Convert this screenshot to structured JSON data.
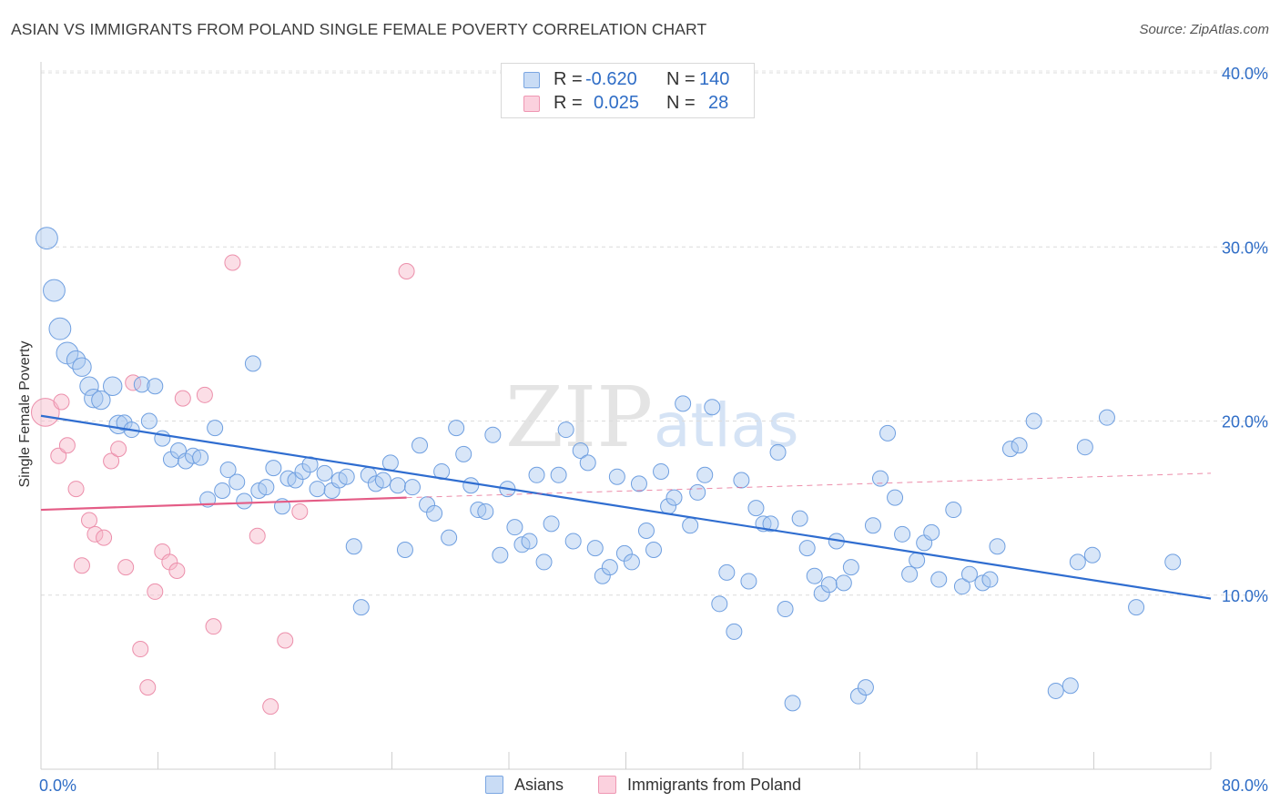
{
  "header": {
    "title": "ASIAN VS IMMIGRANTS FROM POLAND SINGLE FEMALE POVERTY CORRELATION CHART",
    "source": "Source: ZipAtlas.com"
  },
  "watermark": {
    "zip": "ZIP",
    "atlas": "atlas"
  },
  "legend_top": {
    "rows": [
      {
        "r_label": "R =",
        "r_value": "-0.620",
        "n_label": "N =",
        "n_value": "140",
        "color": "#a9c8f0"
      },
      {
        "r_label": "R =",
        "r_value": "0.025",
        "n_label": "N =",
        "n_value": "28",
        "color": "#f7b6c8"
      }
    ]
  },
  "legend_bottom": {
    "asians": "Asians",
    "poland": "Immigrants from Poland"
  },
  "chart_data": {
    "type": "scatter",
    "title": "ASIAN VS IMMIGRANTS FROM POLAND SINGLE FEMALE POVERTY CORRELATION CHART",
    "xlabel": "",
    "ylabel": "Single Female Poverty",
    "xlim": [
      0,
      80
    ],
    "ylim": [
      0,
      40
    ],
    "x_tick_labels": [
      "0.0%",
      "80.0%"
    ],
    "y_ticks": [
      10,
      20,
      30,
      40
    ],
    "y_tick_labels": [
      "10.0%",
      "20.0%",
      "30.0%",
      "40.0%"
    ],
    "grid": "horizontal dashed",
    "colors": {
      "asians_fill": "#a9c8f0",
      "asians_stroke": "#6f9fe0",
      "asians_line": "#2f6dd0",
      "poland_fill": "#f7b6c8",
      "poland_stroke": "#ec8fab",
      "poland_line": "#e45c86",
      "tick_label": "#2f6dc6"
    },
    "series": [
      {
        "name": "Asians",
        "r": -0.62,
        "n": 140,
        "trend": {
          "x": [
            0,
            80
          ],
          "y": [
            20.3,
            9.8
          ]
        },
        "points": [
          [
            0.4,
            30.5,
            1.4
          ],
          [
            0.9,
            27.5,
            1.4
          ],
          [
            1.3,
            25.3,
            1.4
          ],
          [
            1.8,
            23.9,
            1.4
          ],
          [
            2.4,
            23.5,
            1.2
          ],
          [
            2.8,
            23.1,
            1.2
          ],
          [
            3.3,
            22.0,
            1.2
          ],
          [
            3.6,
            21.3,
            1.2
          ],
          [
            4.1,
            21.2,
            1.2
          ],
          [
            4.9,
            22.0,
            1.2
          ],
          [
            5.3,
            19.8,
            1.2
          ],
          [
            5.7,
            19.9,
            1.0
          ],
          [
            6.2,
            19.5,
            1.0
          ],
          [
            6.9,
            22.1,
            1.0
          ],
          [
            7.4,
            20.0,
            1.0
          ],
          [
            7.8,
            22.0,
            1.0
          ],
          [
            8.3,
            19.0,
            1.0
          ],
          [
            8.9,
            17.8,
            1.0
          ],
          [
            9.4,
            18.3,
            1.0
          ],
          [
            9.9,
            17.7,
            1.0
          ],
          [
            10.4,
            18.0,
            1.0
          ],
          [
            10.9,
            17.9,
            1.0
          ],
          [
            11.4,
            15.5,
            1.0
          ],
          [
            11.9,
            19.6,
            1.0
          ],
          [
            12.4,
            16.0,
            1.0
          ],
          [
            12.8,
            17.2,
            1.0
          ],
          [
            13.4,
            16.5,
            1.0
          ],
          [
            13.9,
            15.4,
            1.0
          ],
          [
            14.5,
            23.3,
            1.0
          ],
          [
            14.9,
            16.0,
            1.0
          ],
          [
            15.4,
            16.2,
            1.0
          ],
          [
            15.9,
            17.3,
            1.0
          ],
          [
            16.5,
            15.1,
            1.0
          ],
          [
            16.9,
            16.7,
            1.0
          ],
          [
            17.4,
            16.6,
            1.0
          ],
          [
            17.9,
            17.1,
            1.0
          ],
          [
            18.4,
            17.5,
            1.0
          ],
          [
            18.9,
            16.1,
            1.0
          ],
          [
            19.4,
            17.0,
            1.0
          ],
          [
            19.9,
            16.0,
            1.0
          ],
          [
            20.4,
            16.6,
            1.0
          ],
          [
            20.9,
            16.8,
            1.0
          ],
          [
            21.4,
            12.8,
            1.0
          ],
          [
            21.9,
            9.3,
            1.0
          ],
          [
            22.4,
            16.9,
            1.0
          ],
          [
            22.9,
            16.4,
            1.0
          ],
          [
            23.4,
            16.6,
            1.0
          ],
          [
            23.9,
            17.6,
            1.0
          ],
          [
            24.4,
            16.3,
            1.0
          ],
          [
            24.9,
            12.6,
            1.0
          ],
          [
            25.4,
            16.2,
            1.0
          ],
          [
            25.9,
            18.6,
            1.0
          ],
          [
            26.4,
            15.2,
            1.0
          ],
          [
            26.9,
            14.7,
            1.0
          ],
          [
            27.4,
            17.1,
            1.0
          ],
          [
            27.9,
            13.3,
            1.0
          ],
          [
            28.4,
            19.6,
            1.0
          ],
          [
            28.9,
            18.1,
            1.0
          ],
          [
            29.4,
            16.3,
            1.0
          ],
          [
            29.9,
            14.9,
            1.0
          ],
          [
            30.4,
            14.8,
            1.0
          ],
          [
            30.9,
            19.2,
            1.0
          ],
          [
            31.4,
            12.3,
            1.0
          ],
          [
            31.9,
            16.1,
            1.0
          ],
          [
            32.4,
            13.9,
            1.0
          ],
          [
            32.9,
            12.9,
            1.0
          ],
          [
            33.4,
            13.1,
            1.0
          ],
          [
            33.9,
            16.9,
            1.0
          ],
          [
            34.4,
            11.9,
            1.0
          ],
          [
            34.9,
            14.1,
            1.0
          ],
          [
            35.4,
            16.9,
            1.0
          ],
          [
            35.9,
            19.5,
            1.0
          ],
          [
            36.4,
            13.1,
            1.0
          ],
          [
            36.9,
            18.3,
            1.0
          ],
          [
            37.4,
            17.6,
            1.0
          ],
          [
            37.9,
            12.7,
            1.0
          ],
          [
            38.4,
            11.1,
            1.0
          ],
          [
            38.9,
            11.6,
            1.0
          ],
          [
            39.4,
            16.8,
            1.0
          ],
          [
            39.9,
            12.4,
            1.0
          ],
          [
            40.4,
            11.9,
            1.0
          ],
          [
            40.9,
            16.4,
            1.0
          ],
          [
            41.4,
            13.7,
            1.0
          ],
          [
            41.9,
            12.6,
            1.0
          ],
          [
            42.4,
            17.1,
            1.0
          ],
          [
            42.9,
            15.1,
            1.0
          ],
          [
            43.3,
            15.6,
            1.0
          ],
          [
            43.9,
            21.0,
            1.0
          ],
          [
            44.4,
            14.0,
            1.0
          ],
          [
            44.9,
            15.9,
            1.0
          ],
          [
            45.4,
            16.9,
            1.0
          ],
          [
            45.9,
            20.8,
            1.0
          ],
          [
            46.4,
            9.5,
            1.0
          ],
          [
            46.9,
            11.3,
            1.0
          ],
          [
            47.4,
            7.9,
            1.0
          ],
          [
            47.9,
            16.6,
            1.0
          ],
          [
            48.4,
            10.8,
            1.0
          ],
          [
            48.9,
            15.0,
            1.0
          ],
          [
            49.4,
            14.1,
            1.0
          ],
          [
            49.9,
            14.1,
            1.0
          ],
          [
            50.4,
            18.2,
            1.0
          ],
          [
            50.9,
            9.2,
            1.0
          ],
          [
            51.4,
            3.8,
            1.0
          ],
          [
            51.9,
            14.4,
            1.0
          ],
          [
            52.4,
            12.7,
            1.0
          ],
          [
            52.9,
            11.1,
            1.0
          ],
          [
            53.4,
            10.1,
            1.0
          ],
          [
            53.9,
            10.6,
            1.0
          ],
          [
            54.4,
            13.1,
            1.0
          ],
          [
            54.9,
            10.7,
            1.0
          ],
          [
            55.4,
            11.6,
            1.0
          ],
          [
            55.9,
            4.2,
            1.0
          ],
          [
            56.4,
            4.7,
            1.0
          ],
          [
            56.9,
            14.0,
            1.0
          ],
          [
            57.4,
            16.7,
            1.0
          ],
          [
            57.9,
            19.3,
            1.0
          ],
          [
            58.4,
            15.6,
            1.0
          ],
          [
            58.9,
            13.5,
            1.0
          ],
          [
            59.4,
            11.2,
            1.0
          ],
          [
            59.9,
            12.0,
            1.0
          ],
          [
            60.4,
            13.0,
            1.0
          ],
          [
            60.9,
            13.6,
            1.0
          ],
          [
            61.4,
            10.9,
            1.0
          ],
          [
            62.4,
            14.9,
            1.0
          ],
          [
            63.0,
            10.5,
            1.0
          ],
          [
            63.5,
            11.2,
            1.0
          ],
          [
            64.4,
            10.7,
            1.0
          ],
          [
            64.9,
            10.9,
            1.0
          ],
          [
            65.4,
            12.8,
            1.0
          ],
          [
            66.3,
            18.4,
            1.0
          ],
          [
            66.9,
            18.6,
            1.0
          ],
          [
            67.9,
            20.0,
            1.0
          ],
          [
            69.4,
            4.5,
            1.0
          ],
          [
            70.4,
            4.8,
            1.0
          ],
          [
            70.9,
            11.9,
            1.0
          ],
          [
            71.4,
            18.5,
            1.0
          ],
          [
            71.9,
            12.3,
            1.0
          ],
          [
            72.9,
            20.2,
            1.0
          ],
          [
            74.9,
            9.3,
            1.0
          ],
          [
            77.4,
            11.9,
            1.0
          ]
        ]
      },
      {
        "name": "Immigrants from Poland",
        "r": 0.025,
        "n": 28,
        "trend": {
          "x": [
            0,
            25
          ],
          "y": [
            14.9,
            15.6
          ]
        },
        "trend_extension": {
          "x": [
            25,
            80
          ],
          "y": [
            15.6,
            17.0
          ]
        },
        "points": [
          [
            0.3,
            20.5,
            1.8
          ],
          [
            1.2,
            18.0,
            1.0
          ],
          [
            1.4,
            21.1,
            1.0
          ],
          [
            1.8,
            18.6,
            1.0
          ],
          [
            2.4,
            16.1,
            1.0
          ],
          [
            2.8,
            11.7,
            1.0
          ],
          [
            3.3,
            14.3,
            1.0
          ],
          [
            3.7,
            13.5,
            1.0
          ],
          [
            4.3,
            13.3,
            1.0
          ],
          [
            4.8,
            17.7,
            1.0
          ],
          [
            5.3,
            18.4,
            1.0
          ],
          [
            5.8,
            11.6,
            1.0
          ],
          [
            6.3,
            22.2,
            1.0
          ],
          [
            6.8,
            6.9,
            1.0
          ],
          [
            7.3,
            4.7,
            1.0
          ],
          [
            7.8,
            10.2,
            1.0
          ],
          [
            8.3,
            12.5,
            1.0
          ],
          [
            8.8,
            11.9,
            1.0
          ],
          [
            9.3,
            11.4,
            1.0
          ],
          [
            9.7,
            21.3,
            1.0
          ],
          [
            11.2,
            21.5,
            1.0
          ],
          [
            11.8,
            8.2,
            1.0
          ],
          [
            13.1,
            29.1,
            1.0
          ],
          [
            14.8,
            13.4,
            1.0
          ],
          [
            15.7,
            3.6,
            1.0
          ],
          [
            16.7,
            7.4,
            1.0
          ],
          [
            17.7,
            14.8,
            1.0
          ],
          [
            25.0,
            28.6,
            1.0
          ]
        ]
      }
    ]
  }
}
